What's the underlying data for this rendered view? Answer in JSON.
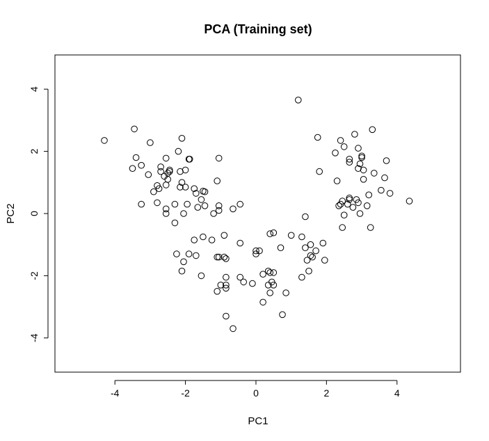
{
  "chart_data": {
    "type": "scatter",
    "title": "PCA (Training set)",
    "xlabel": "PC1",
    "ylabel": "PC2",
    "xlim": [
      -5.7,
      5.8
    ],
    "ylim": [
      -5.1,
      5.1
    ],
    "xticks": [
      -4,
      -2,
      0,
      2,
      4
    ],
    "yticks": [
      -4,
      -2,
      0,
      2,
      4
    ],
    "xtick_labels": [
      "-4",
      "-2",
      "0",
      "2",
      "4"
    ],
    "ytick_labels": [
      "-4",
      "-2",
      "0",
      "2",
      "4"
    ],
    "grid": false,
    "marker": "open-circle",
    "points": [
      [
        -4.3,
        2.35
      ],
      [
        -3.45,
        2.72
      ],
      [
        -3.0,
        2.28
      ],
      [
        -2.1,
        2.42
      ],
      [
        -3.4,
        1.8
      ],
      [
        -3.5,
        1.45
      ],
      [
        -3.25,
        1.55
      ],
      [
        -3.05,
        1.25
      ],
      [
        -2.8,
        0.9
      ],
      [
        -2.7,
        1.5
      ],
      [
        -2.7,
        1.35
      ],
      [
        -2.6,
        1.2
      ],
      [
        -2.55,
        1.78
      ],
      [
        -2.5,
        1.3
      ],
      [
        -2.45,
        1.4
      ],
      [
        -2.45,
        1.35
      ],
      [
        -2.5,
        1.1
      ],
      [
        -2.2,
        2.0
      ],
      [
        -2.15,
        1.35
      ],
      [
        -2.0,
        1.4
      ],
      [
        -1.9,
        1.75
      ],
      [
        -1.88,
        1.75
      ],
      [
        -1.05,
        1.78
      ],
      [
        -1.1,
        1.05
      ],
      [
        -2.15,
        0.85
      ],
      [
        -2.1,
        1.0
      ],
      [
        -2.0,
        0.85
      ],
      [
        -1.75,
        0.8
      ],
      [
        -1.5,
        0.72
      ],
      [
        -1.45,
        0.7
      ],
      [
        -1.55,
        0.45
      ],
      [
        -1.45,
        0.25
      ],
      [
        -1.2,
        0.0
      ],
      [
        -1.05,
        0.25
      ],
      [
        -1.05,
        0.1
      ],
      [
        -0.65,
        0.15
      ],
      [
        -0.45,
        0.3
      ],
      [
        -2.75,
        0.8
      ],
      [
        -2.55,
        0.92
      ],
      [
        -2.9,
        0.7
      ],
      [
        -3.25,
        0.3
      ],
      [
        -2.8,
        0.35
      ],
      [
        -2.55,
        0.15
      ],
      [
        -2.55,
        0.0
      ],
      [
        -2.3,
        0.3
      ],
      [
        -2.05,
        0.0
      ],
      [
        -1.95,
        0.3
      ],
      [
        -1.7,
        0.65
      ],
      [
        -2.3,
        -0.3
      ],
      [
        -1.65,
        0.2
      ],
      [
        -1.75,
        -0.85
      ],
      [
        -1.5,
        -0.75
      ],
      [
        -1.25,
        -0.85
      ],
      [
        -0.9,
        -0.7
      ],
      [
        -2.25,
        -1.3
      ],
      [
        -1.9,
        -1.3
      ],
      [
        -1.7,
        -1.35
      ],
      [
        -2.05,
        -1.55
      ],
      [
        -2.1,
        -1.85
      ],
      [
        -1.1,
        -1.4
      ],
      [
        -1.05,
        -1.4
      ],
      [
        -0.85,
        -1.45
      ],
      [
        -1.55,
        -2.0
      ],
      [
        -0.85,
        -2.05
      ],
      [
        -1.0,
        -2.3
      ],
      [
        -1.1,
        -2.5
      ],
      [
        -0.85,
        -2.3
      ],
      [
        -0.85,
        -2.4
      ],
      [
        -0.45,
        -2.05
      ],
      [
        -0.35,
        -2.2
      ],
      [
        -0.1,
        -2.25
      ],
      [
        -0.45,
        -0.95
      ],
      [
        -0.85,
        -3.3
      ],
      [
        -0.65,
        -3.7
      ],
      [
        0.0,
        -1.2
      ],
      [
        0.1,
        -1.2
      ],
      [
        0.0,
        -1.3
      ],
      [
        0.2,
        -2.85
      ],
      [
        0.2,
        -1.95
      ],
      [
        0.35,
        -1.85
      ],
      [
        0.4,
        -1.9
      ],
      [
        0.35,
        -2.3
      ],
      [
        0.45,
        -2.2
      ],
      [
        0.5,
        -2.3
      ],
      [
        0.4,
        -2.55
      ],
      [
        0.75,
        -3.25
      ],
      [
        0.85,
        -2.55
      ],
      [
        0.4,
        -0.65
      ],
      [
        0.5,
        -0.62
      ],
      [
        0.7,
        -1.1
      ],
      [
        1.0,
        -0.7
      ],
      [
        1.3,
        -0.75
      ],
      [
        1.4,
        -1.1
      ],
      [
        1.45,
        -1.5
      ],
      [
        1.55,
        -1.35
      ],
      [
        1.6,
        -1.4
      ],
      [
        1.55,
        -1.0
      ],
      [
        1.7,
        -1.2
      ],
      [
        1.9,
        -0.95
      ],
      [
        1.95,
        -1.5
      ],
      [
        1.3,
        -2.05
      ],
      [
        1.5,
        -1.85
      ],
      [
        1.4,
        -0.1
      ],
      [
        1.2,
        3.65
      ],
      [
        1.75,
        2.45
      ],
      [
        1.8,
        1.35
      ],
      [
        2.25,
        1.95
      ],
      [
        2.3,
        1.05
      ],
      [
        2.35,
        0.25
      ],
      [
        2.4,
        0.3
      ],
      [
        2.45,
        0.4
      ],
      [
        2.4,
        2.35
      ],
      [
        2.5,
        2.15
      ],
      [
        2.45,
        -0.45
      ],
      [
        2.5,
        -0.05
      ],
      [
        2.6,
        0.3
      ],
      [
        2.65,
        1.65
      ],
      [
        2.65,
        1.75
      ],
      [
        2.65,
        0.45
      ],
      [
        2.65,
        0.5
      ],
      [
        2.75,
        0.2
      ],
      [
        2.8,
        2.55
      ],
      [
        2.85,
        0.45
      ],
      [
        2.9,
        2.1
      ],
      [
        2.9,
        1.45
      ],
      [
        2.95,
        1.6
      ],
      [
        2.9,
        0.35
      ],
      [
        2.95,
        0.0
      ],
      [
        3.0,
        1.85
      ],
      [
        3.0,
        1.8
      ],
      [
        3.05,
        1.4
      ],
      [
        3.05,
        1.1
      ],
      [
        3.2,
        0.6
      ],
      [
        3.15,
        0.25
      ],
      [
        3.25,
        -0.45
      ],
      [
        3.3,
        2.7
      ],
      [
        3.35,
        1.3
      ],
      [
        3.55,
        0.75
      ],
      [
        3.65,
        1.15
      ],
      [
        3.7,
        1.7
      ],
      [
        3.8,
        0.65
      ],
      [
        4.35,
        0.4
      ],
      [
        -0.9,
        -1.4
      ],
      [
        0.5,
        -1.9
      ]
    ]
  }
}
